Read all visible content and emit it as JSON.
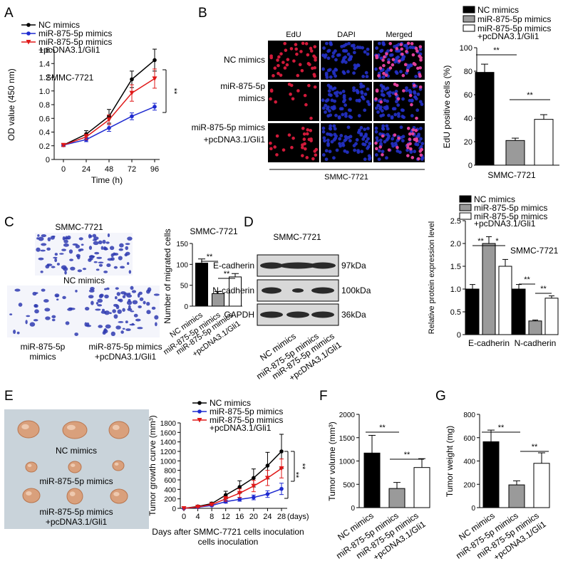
{
  "colors": {
    "nc": "#000000",
    "mir": "#1f2bd0",
    "gli": "#e01818",
    "bar_nc": "#000000",
    "bar_mir": "#9a9a9a",
    "bar_gli": "#ffffff",
    "blot_bg": "#d8d8d8",
    "blot_band": "#2a2a2a",
    "tumor_bg": "#c9d3da",
    "tumor": "#d9a07c",
    "edu_red": "#d11a3a",
    "dapi_blue": "#2431c8"
  },
  "legend": {
    "nc": "NC mimics",
    "mir": "miR-875-5p mimics",
    "gli_1": "miR-875-5p mimics",
    "gli_2": "+pcDNA3.1/Gli1"
  },
  "panels": {
    "A": "A",
    "B": "B",
    "C": "C",
    "D": "D",
    "E": "E",
    "F": "F",
    "G": "G"
  },
  "sig": {
    "double": "**",
    "single": "*"
  },
  "panel_A": {
    "cell_label": "SMMC-7721"
  },
  "panel_B": {
    "col_labels": [
      "EdU",
      "DAPI",
      "Merged"
    ],
    "row_labels": [
      [
        "NC mimics"
      ],
      [
        "miR-875-5p",
        "mimics"
      ],
      [
        "miR-875-5p mimics",
        "+pcDNA3.1/Gli1"
      ]
    ],
    "bottom_label": "SMMC-7721"
  },
  "panel_C": {
    "top_label": "SMMC-7721",
    "nc_label": "NC mimics",
    "mir_label": [
      "miR-875-5p",
      "mimics"
    ],
    "gli_label": [
      "miR-875-5p mimics",
      "+pcDNA3.1/Gli1"
    ],
    "chart_title": "SMMC-7721"
  },
  "panel_D": {
    "blot_title": "SMMC-7721",
    "proteins": [
      "E-cadherin",
      "N-cadherin",
      "GAPDH"
    ],
    "sizes": [
      "97kDa",
      "100kDa",
      "36kDa"
    ],
    "lane_labels": [
      [
        "NC mimics"
      ],
      [
        "miR-875-5p mimics"
      ],
      [
        "miR-875-5p mimics",
        "+pcDNA3.1/Gli1"
      ]
    ]
  },
  "panel_E": {
    "photo_labels": [
      [
        "NC mimics"
      ],
      [
        "miR-875-5p mimics"
      ],
      [
        "miR-875-5p mimics",
        "+pcDNA3.1/Gli1"
      ]
    ]
  },
  "chart_data": [
    {
      "id": "A",
      "type": "line",
      "xlabel": "Time (h)",
      "ylabel": "OD value (450 nm)",
      "x": [
        0,
        24,
        48,
        72,
        96
      ],
      "xticks": [
        "0",
        "24",
        "48",
        "72",
        "96"
      ],
      "ylim": [
        0,
        1.6
      ],
      "yticks": [
        "0",
        "0.2",
        "0.4",
        "0.6",
        "0.8",
        "1.0",
        "1.2",
        "1.4",
        "1.6"
      ],
      "series": [
        {
          "name": "NC mimics",
          "values": [
            0.21,
            0.37,
            0.63,
            1.17,
            1.45
          ],
          "err": [
            0.02,
            0.05,
            0.1,
            0.12,
            0.16
          ]
        },
        {
          "name": "miR-875-5p mimics",
          "values": [
            0.21,
            0.29,
            0.46,
            0.63,
            0.77
          ],
          "err": [
            0.02,
            0.03,
            0.05,
            0.05,
            0.05
          ]
        },
        {
          "name": "miR-875-5p mimics +pcDNA3.1/Gli1",
          "values": [
            0.21,
            0.33,
            0.58,
            0.97,
            1.18
          ],
          "err": [
            0.02,
            0.04,
            0.07,
            0.12,
            0.14
          ]
        }
      ],
      "sig": "**"
    },
    {
      "id": "B",
      "type": "bar",
      "ylabel": "EdU positive cells (%)",
      "xlabel": "SMMC-7721",
      "ylim": [
        0,
        100
      ],
      "yticks": [
        "0",
        "20",
        "40",
        "60",
        "80",
        "100"
      ],
      "categories": [
        "NC mimics",
        "miR-875-5p mimics",
        "miR-875-5p mimics +pcDNA3.1/Gli1"
      ],
      "values": [
        79,
        21,
        39
      ],
      "err": [
        7,
        2,
        4
      ]
    },
    {
      "id": "C",
      "type": "bar",
      "title": "SMMC-7721",
      "ylabel": "Number of migrated cells",
      "ylim": [
        0,
        150
      ],
      "yticks": [
        "0",
        "50",
        "100",
        "150"
      ],
      "categories": [
        "NC mimics",
        "miR-875-5p mimics",
        "miR-875-5p mimics +pcDNA3.1/Gli1"
      ],
      "values": [
        103,
        30,
        70
      ],
      "err": [
        10,
        5,
        8
      ]
    },
    {
      "id": "D",
      "type": "bar",
      "title": "SMMC-7721",
      "ylabel": "Relative protein expression level",
      "ylim": [
        0,
        2.5
      ],
      "yticks": [
        "0",
        "0.5",
        "1.0",
        "1.5",
        "2.0",
        "2.5"
      ],
      "categories": [
        "E-cadherin",
        "N-cadherin"
      ],
      "series": [
        {
          "name": "NC mimics",
          "values": [
            1.0,
            1.0
          ],
          "err": [
            0.1,
            0.1
          ]
        },
        {
          "name": "miR-875-5p mimics",
          "values": [
            2.0,
            0.3
          ],
          "err": [
            0.15,
            0.02
          ]
        },
        {
          "name": "miR-875-5p mimics +pcDNA3.1/Gli1",
          "values": [
            1.5,
            0.8
          ],
          "err": [
            0.15,
            0.05
          ]
        }
      ]
    },
    {
      "id": "E",
      "type": "line",
      "xlabel": "Days after SMMC-7721 cells inoculation",
      "xunit": "(days)",
      "ylabel": "Tumor growth curve (mm³)",
      "x": [
        0,
        4,
        8,
        12,
        16,
        20,
        24,
        28
      ],
      "xticks": [
        "0",
        "4",
        "8",
        "12",
        "16",
        "20",
        "24",
        "28"
      ],
      "ylim": [
        0,
        1800
      ],
      "yticks": [
        "0",
        "200",
        "400",
        "600",
        "800",
        "1000",
        "1200",
        "1400",
        "1600",
        "1800"
      ],
      "series": [
        {
          "name": "NC mimics",
          "values": [
            0,
            40,
            100,
            280,
            450,
            640,
            900,
            1200
          ],
          "err": [
            0,
            15,
            30,
            80,
            130,
            190,
            280,
            360
          ]
        },
        {
          "name": "miR-875-5p mimics",
          "values": [
            0,
            25,
            60,
            140,
            190,
            230,
            300,
            410
          ],
          "err": [
            0,
            10,
            15,
            30,
            40,
            50,
            70,
            120
          ]
        },
        {
          "name": "miR-875-5p mimics +pcDNA3.1/Gli1",
          "values": [
            0,
            30,
            80,
            200,
            320,
            470,
            640,
            840
          ],
          "err": [
            0,
            10,
            20,
            50,
            90,
            120,
            160,
            200
          ]
        }
      ],
      "sig": "**"
    },
    {
      "id": "F",
      "type": "bar",
      "ylabel": "Tumor volume (mm³)",
      "ylim": [
        0,
        2000
      ],
      "yticks": [
        "0",
        "500",
        "1000",
        "1500",
        "2000"
      ],
      "categories": [
        "NC mimics",
        "miR-875-5p mimics",
        "miR-875-5p mimics +pcDNA3.1/Gli1"
      ],
      "values": [
        1170,
        410,
        860
      ],
      "err": [
        380,
        130,
        190
      ]
    },
    {
      "id": "G",
      "type": "bar",
      "ylabel": "Tumor weight (mg)",
      "ylim": [
        0,
        800
      ],
      "yticks": [
        "0",
        "200",
        "400",
        "600",
        "800"
      ],
      "categories": [
        "NC mimics",
        "miR-875-5p mimics",
        "miR-875-5p mimics +pcDNA3.1/Gli1"
      ],
      "values": [
        565,
        195,
        380
      ],
      "err": [
        100,
        35,
        90
      ]
    }
  ]
}
